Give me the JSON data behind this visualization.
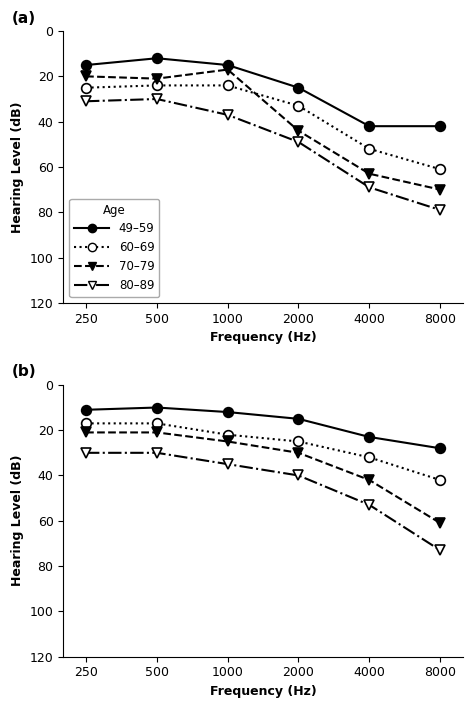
{
  "frequencies": [
    250,
    500,
    1000,
    2000,
    4000,
    8000
  ],
  "panel_a": {
    "label": "(a)",
    "series": [
      {
        "age": "49-59",
        "values": [
          15,
          12,
          15,
          25,
          42,
          42
        ],
        "linestyle": "-",
        "marker": "o",
        "markerfacecolor": "black",
        "markeredgecolor": "black"
      },
      {
        "age": "60-69",
        "values": [
          25,
          24,
          24,
          33,
          52,
          61
        ],
        "linestyle": ":",
        "marker": "o",
        "markerfacecolor": "white",
        "markeredgecolor": "black"
      },
      {
        "age": "70-79",
        "values": [
          20,
          21,
          17,
          44,
          63,
          70
        ],
        "linestyle": "--",
        "marker": "v",
        "markerfacecolor": "black",
        "markeredgecolor": "black"
      },
      {
        "age": "80-89",
        "values": [
          31,
          30,
          37,
          49,
          69,
          79
        ],
        "linestyle": "-.",
        "marker": "v",
        "markerfacecolor": "white",
        "markeredgecolor": "black"
      }
    ],
    "legend_title": "Age",
    "legend_labels": [
      "49–59",
      "60–69",
      "70–79",
      "80–89"
    ],
    "legend_linestyles": [
      "-",
      ":",
      "--",
      "-."
    ],
    "legend_markers": [
      "o",
      "o",
      "v",
      "v"
    ],
    "legend_mfc": [
      "black",
      "white",
      "black",
      "white"
    ]
  },
  "panel_b": {
    "label": "(b)",
    "series": [
      {
        "age": "49-59",
        "values": [
          11,
          10,
          12,
          15,
          23,
          28
        ],
        "linestyle": "-",
        "marker": "o",
        "markerfacecolor": "black",
        "markeredgecolor": "black"
      },
      {
        "age": "60-69",
        "values": [
          17,
          17,
          22,
          25,
          32,
          42
        ],
        "linestyle": ":",
        "marker": "o",
        "markerfacecolor": "white",
        "markeredgecolor": "black"
      },
      {
        "age": "70-79",
        "values": [
          21,
          21,
          25,
          30,
          42,
          61
        ],
        "linestyle": "--",
        "marker": "v",
        "markerfacecolor": "black",
        "markeredgecolor": "black"
      },
      {
        "age": "80-89",
        "values": [
          30,
          30,
          35,
          40,
          53,
          73
        ],
        "linestyle": "-.",
        "marker": "v",
        "markerfacecolor": "white",
        "markeredgecolor": "black"
      }
    ]
  },
  "ylabel": "Hearing Level (dB)",
  "xlabel": "Frequency (Hz)",
  "ylim_bottom": 120,
  "ylim_top": 0,
  "yticks": [
    0,
    20,
    40,
    60,
    80,
    100,
    120
  ],
  "xtick_vals": [
    250,
    500,
    1000,
    2000,
    4000,
    8000
  ],
  "xtick_labels": [
    "250",
    "500",
    "1000",
    "2000",
    "4000",
    "8000"
  ],
  "background_color": "#ffffff",
  "linewidth": 1.5,
  "markersize": 7
}
